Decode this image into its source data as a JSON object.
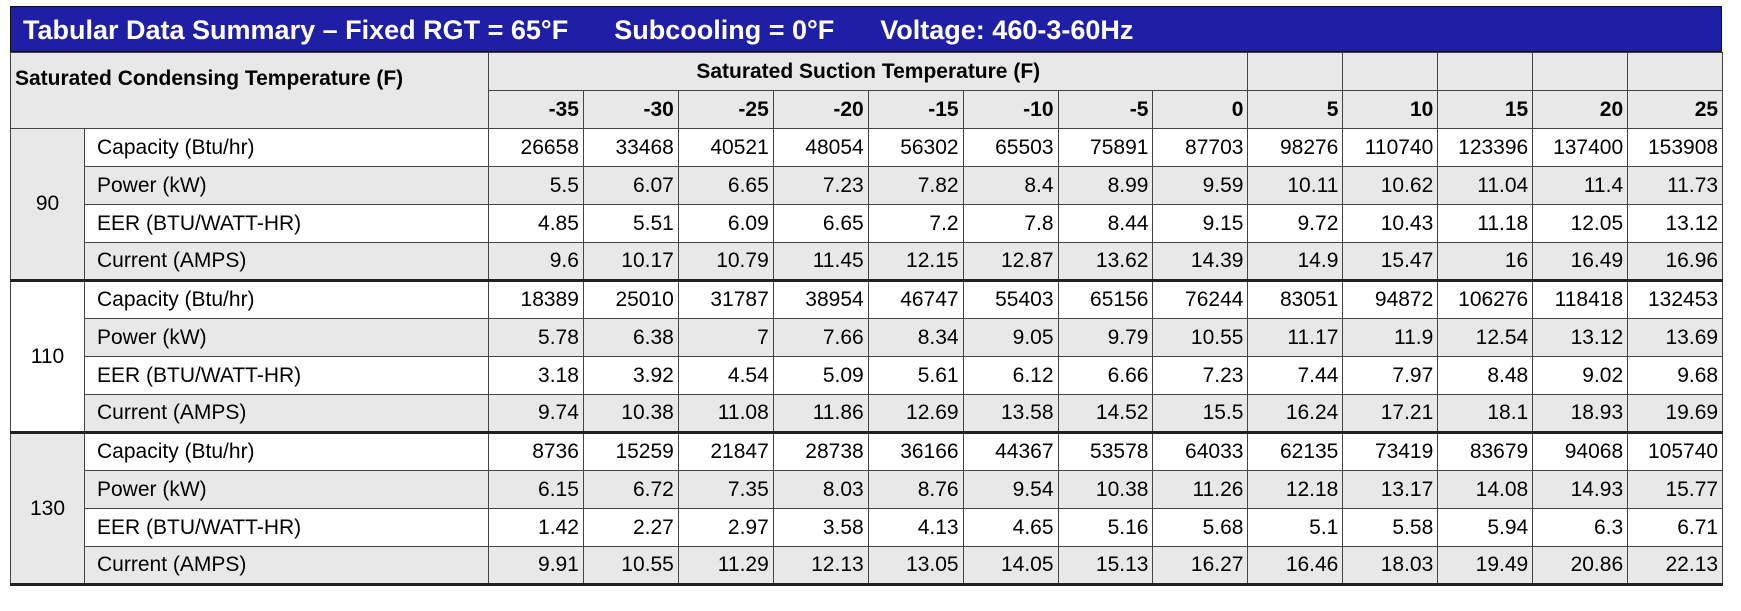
{
  "header": {
    "title": [
      "Tabular Data Summary – Fixed RGT = 65°F",
      "Subcooling = 0°F",
      "Voltage: 460-3-60Hz"
    ]
  },
  "table": {
    "row_header": "Saturated Condensing Temperature (F)",
    "column_group": "Saturated Suction Temperature (F)",
    "columns": [
      -35,
      -30,
      -25,
      -20,
      -15,
      -10,
      -5,
      0,
      5,
      10,
      15,
      20,
      25
    ],
    "groups": [
      {
        "label": 90,
        "rows": [
          {
            "label": "Capacity (Btu/hr)",
            "values": [
              26658,
              33468,
              40521,
              48054,
              56302,
              65503,
              75891,
              87703,
              98276,
              110740,
              123396,
              137400,
              153908
            ]
          },
          {
            "label": "Power (kW)",
            "values": [
              5.5,
              6.07,
              6.65,
              7.23,
              7.82,
              8.4,
              8.99,
              9.59,
              10.11,
              10.62,
              11.04,
              11.4,
              11.73
            ]
          },
          {
            "label": "EER (BTU/WATT-HR)",
            "values": [
              4.85,
              5.51,
              6.09,
              6.65,
              7.2,
              7.8,
              8.44,
              9.15,
              9.72,
              10.43,
              11.18,
              12.05,
              13.12
            ]
          },
          {
            "label": "Current (AMPS)",
            "values": [
              9.6,
              10.17,
              10.79,
              11.45,
              12.15,
              12.87,
              13.62,
              14.39,
              14.9,
              15.47,
              16,
              16.49,
              16.96
            ]
          }
        ]
      },
      {
        "label": 110,
        "rows": [
          {
            "label": "Capacity (Btu/hr)",
            "values": [
              18389,
              25010,
              31787,
              38954,
              46747,
              55403,
              65156,
              76244,
              83051,
              94872,
              106276,
              118418,
              132453
            ]
          },
          {
            "label": "Power (kW)",
            "values": [
              5.78,
              6.38,
              7,
              7.66,
              8.34,
              9.05,
              9.79,
              10.55,
              11.17,
              11.9,
              12.54,
              13.12,
              13.69
            ]
          },
          {
            "label": "EER (BTU/WATT-HR)",
            "values": [
              3.18,
              3.92,
              4.54,
              5.09,
              5.61,
              6.12,
              6.66,
              7.23,
              7.44,
              7.97,
              8.48,
              9.02,
              9.68
            ]
          },
          {
            "label": "Current (AMPS)",
            "values": [
              9.74,
              10.38,
              11.08,
              11.86,
              12.69,
              13.58,
              14.52,
              15.5,
              16.24,
              17.21,
              18.1,
              18.93,
              19.69
            ]
          }
        ]
      },
      {
        "label": 130,
        "rows": [
          {
            "label": "Capacity (Btu/hr)",
            "values": [
              8736,
              15259,
              21847,
              28738,
              36166,
              44367,
              53578,
              64033,
              62135,
              73419,
              83679,
              94068,
              105740
            ]
          },
          {
            "label": "Power (kW)",
            "values": [
              6.15,
              6.72,
              7.35,
              8.03,
              8.76,
              9.54,
              10.38,
              11.26,
              12.18,
              13.17,
              14.08,
              14.93,
              15.77
            ]
          },
          {
            "label": "EER (BTU/WATT-HR)",
            "values": [
              1.42,
              2.27,
              2.97,
              3.58,
              4.13,
              4.65,
              5.16,
              5.68,
              5.1,
              5.58,
              5.94,
              6.3,
              6.71
            ]
          },
          {
            "label": "Current (AMPS)",
            "values": [
              9.91,
              10.55,
              11.29,
              12.13,
              13.05,
              14.05,
              15.13,
              16.27,
              16.46,
              18.03,
              19.49,
              20.86,
              22.13
            ]
          }
        ]
      }
    ]
  }
}
